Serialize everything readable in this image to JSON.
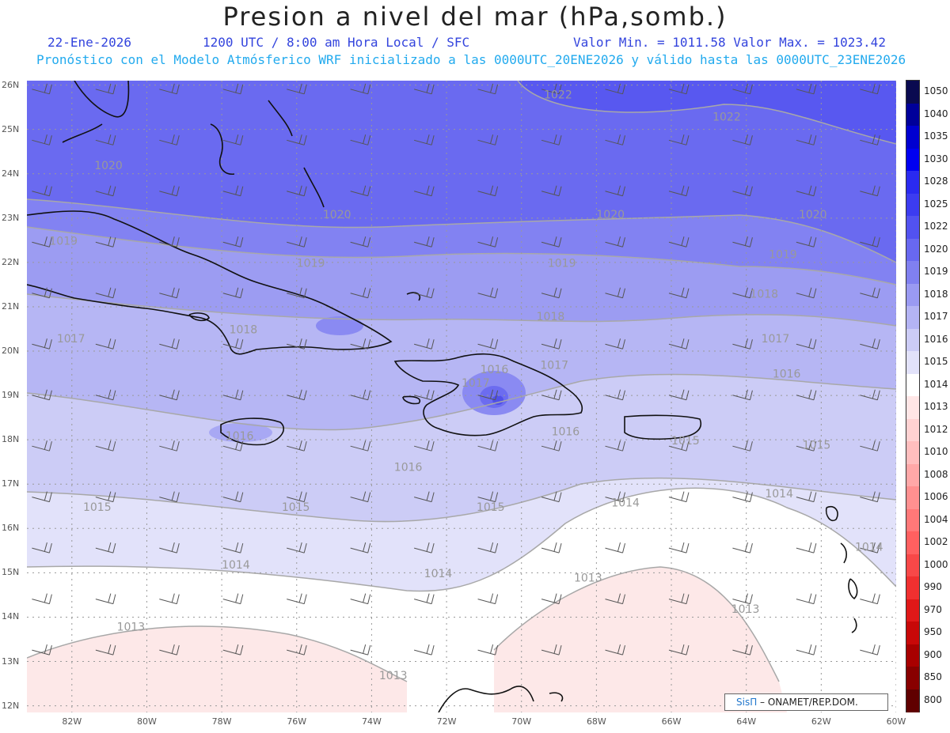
{
  "header": {
    "title": "Presion a nivel del mar (hPa,somb.)",
    "date": "22-Ene-2026",
    "time": "1200 UTC / 8:00 am Hora Local / SFC",
    "min_max": "Valor Min. = 1011.58  Valor Max. = 1023.42",
    "model_info": "Pronóstico con el Modelo Atmósferico WRF inicializado a las 0000UTC_20ENE2026 y válido hasta las  0000UTC_23ENE2026"
  },
  "axes": {
    "lat_labels": [
      "26N",
      "25N",
      "24N",
      "23N",
      "22N",
      "21N",
      "20N",
      "19N",
      "18N",
      "17N",
      "16N",
      "15N",
      "14N",
      "13N",
      "12N"
    ],
    "lon_labels": [
      "82W",
      "80W",
      "78W",
      "76W",
      "74W",
      "72W",
      "70W",
      "68W",
      "66W",
      "64W",
      "62W",
      "60W"
    ]
  },
  "colorbar": {
    "labels": [
      "1050",
      "1040",
      "1035",
      "1030",
      "1028",
      "1025",
      "1022",
      "1020",
      "1019",
      "1018",
      "1017",
      "1016",
      "1015",
      "1014",
      "1013",
      "1012",
      "1010",
      "1008",
      "1006",
      "1004",
      "1002",
      "1000",
      "990",
      "970",
      "950",
      "900",
      "850",
      "800"
    ],
    "colors": [
      "#0a0a50",
      "#00009a",
      "#0000d0",
      "#0000f0",
      "#2a2af0",
      "#3c3cf0",
      "#5252f0",
      "#6868f0",
      "#8080f0",
      "#9a9af2",
      "#b4b4f4",
      "#ccccf6",
      "#e2e2fa",
      "#ffffff",
      "#ffe6e6",
      "#ffd2d2",
      "#ffbebe",
      "#ffa8a8",
      "#ff9090",
      "#ff7878",
      "#ff6060",
      "#f84848",
      "#f03030",
      "#e01818",
      "#c80808",
      "#a80000",
      "#880000",
      "#600000"
    ]
  },
  "contour_labels": [
    {
      "text": "1022",
      "lon": -69.4,
      "lat": 25.7
    },
    {
      "text": "1022",
      "lon": -64.9,
      "lat": 25.2
    },
    {
      "text": "1020",
      "lon": -81.4,
      "lat": 24.1
    },
    {
      "text": "1020",
      "lon": -75.3,
      "lat": 23.0
    },
    {
      "text": "1020",
      "lon": -68.0,
      "lat": 23.0
    },
    {
      "text": "1020",
      "lon": -62.6,
      "lat": 23.0
    },
    {
      "text": "1019",
      "lon": -82.6,
      "lat": 22.4
    },
    {
      "text": "1019",
      "lon": -76.0,
      "lat": 21.9
    },
    {
      "text": "1019",
      "lon": -69.3,
      "lat": 21.9
    },
    {
      "text": "1019",
      "lon": -63.4,
      "lat": 22.1
    },
    {
      "text": "1018",
      "lon": -77.8,
      "lat": 20.4
    },
    {
      "text": "1018",
      "lon": -69.6,
      "lat": 20.7
    },
    {
      "text": "1018",
      "lon": -63.9,
      "lat": 21.2
    },
    {
      "text": "1017",
      "lon": -82.4,
      "lat": 20.2
    },
    {
      "text": "1017",
      "lon": -71.6,
      "lat": 19.2
    },
    {
      "text": "1017",
      "lon": -69.5,
      "lat": 19.6
    },
    {
      "text": "1017",
      "lon": -63.6,
      "lat": 20.2
    },
    {
      "text": "1016",
      "lon": -71.1,
      "lat": 19.5
    },
    {
      "text": "1016",
      "lon": -69.2,
      "lat": 18.1
    },
    {
      "text": "1016",
      "lon": -73.4,
      "lat": 17.3
    },
    {
      "text": "1016",
      "lon": -77.9,
      "lat": 18.0
    },
    {
      "text": "1016",
      "lon": -63.3,
      "lat": 19.4
    },
    {
      "text": "1015",
      "lon": -81.7,
      "lat": 16.4
    },
    {
      "text": "1015",
      "lon": -76.4,
      "lat": 16.4
    },
    {
      "text": "1015",
      "lon": -71.2,
      "lat": 16.4
    },
    {
      "text": "1015",
      "lon": -66.0,
      "lat": 17.9
    },
    {
      "text": "1015",
      "lon": -62.5,
      "lat": 17.8
    },
    {
      "text": "1014",
      "lon": -78.0,
      "lat": 15.1
    },
    {
      "text": "1014",
      "lon": -72.6,
      "lat": 14.9
    },
    {
      "text": "1014",
      "lon": -67.6,
      "lat": 16.5
    },
    {
      "text": "1014",
      "lon": -63.5,
      "lat": 16.7
    },
    {
      "text": "1014",
      "lon": -61.1,
      "lat": 15.5
    },
    {
      "text": "1013",
      "lon": -80.8,
      "lat": 13.7
    },
    {
      "text": "1013",
      "lon": -73.8,
      "lat": 12.6
    },
    {
      "text": "1013",
      "lon": -68.6,
      "lat": 14.8
    },
    {
      "text": "1013",
      "lon": -64.4,
      "lat": 14.1
    }
  ],
  "credit": {
    "brand": "SisΠ",
    "text": " – ONAMET/REP.DOM."
  }
}
